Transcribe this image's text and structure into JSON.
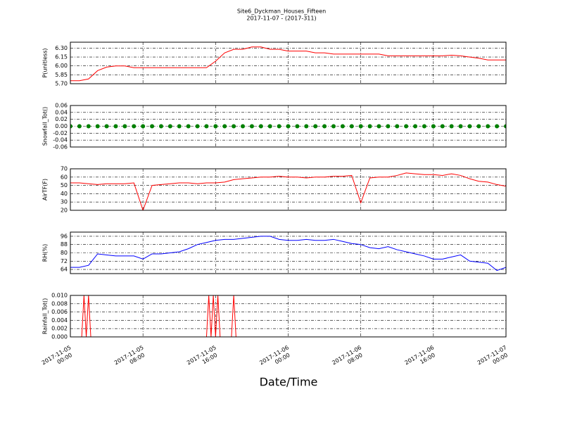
{
  "chart_data": [
    {
      "type": "line",
      "title": "Site6_Dyckman_Houses_Fifteen",
      "subtitle": "2017-11-07 - (2017-311)",
      "ylabel": "P(unitless)",
      "color": "#ff0000",
      "grid": true,
      "x": [
        "2017-11-05 00:00",
        "2017-11-05 01:00",
        "2017-11-05 02:00",
        "2017-11-05 03:00",
        "2017-11-05 04:00",
        "2017-11-05 05:00",
        "2017-11-05 06:00",
        "2017-11-05 07:00",
        "2017-11-05 08:00",
        "2017-11-05 09:00",
        "2017-11-05 10:00",
        "2017-11-05 11:00",
        "2017-11-05 12:00",
        "2017-11-05 13:00",
        "2017-11-05 14:00",
        "2017-11-05 15:00",
        "2017-11-05 16:00",
        "2017-11-05 17:00",
        "2017-11-05 18:00",
        "2017-11-05 19:00",
        "2017-11-05 20:00",
        "2017-11-05 21:00",
        "2017-11-05 22:00",
        "2017-11-05 23:00",
        "2017-11-06 00:00",
        "2017-11-06 01:00",
        "2017-11-06 02:00",
        "2017-11-06 03:00",
        "2017-11-06 04:00",
        "2017-11-06 05:00",
        "2017-11-06 06:00",
        "2017-11-06 07:00",
        "2017-11-06 08:00",
        "2017-11-06 09:00",
        "2017-11-06 10:00",
        "2017-11-06 11:00",
        "2017-11-06 12:00",
        "2017-11-06 13:00",
        "2017-11-06 14:00",
        "2017-11-06 15:00",
        "2017-11-06 16:00",
        "2017-11-06 17:00",
        "2017-11-06 18:00",
        "2017-11-06 19:00",
        "2017-11-06 20:00",
        "2017-11-06 21:00",
        "2017-11-06 22:00",
        "2017-11-06 23:00",
        "2017-11-07 00:00"
      ],
      "values": [
        5.75,
        5.75,
        5.78,
        5.92,
        5.98,
        6.0,
        6.0,
        5.97,
        5.97,
        5.97,
        5.97,
        5.97,
        5.97,
        5.97,
        5.97,
        5.97,
        6.08,
        6.22,
        6.28,
        6.28,
        6.32,
        6.32,
        6.28,
        6.28,
        6.25,
        6.25,
        6.25,
        6.22,
        6.22,
        6.2,
        6.2,
        6.2,
        6.2,
        6.2,
        6.2,
        6.17,
        6.17,
        6.17,
        6.17,
        6.17,
        6.17,
        6.17,
        6.18,
        6.17,
        6.15,
        6.13,
        6.1,
        6.1,
        6.1
      ],
      "xlim": [
        "2017-11-05 00:00",
        "2017-11-07 00:00"
      ],
      "xticks": [
        "2017-11-05 00:00",
        "2017-11-05 08:00",
        "2017-11-05 16:00",
        "2017-11-06 00:00",
        "2017-11-06 08:00",
        "2017-11-06 16:00",
        "2017-11-07 00:00"
      ],
      "ylim": [
        5.7,
        6.4
      ],
      "yticks": [
        {
          "value": 5.7,
          "label": "5.70"
        },
        {
          "value": 5.85,
          "label": "5.85"
        },
        {
          "value": 6.0,
          "label": "6.00"
        },
        {
          "value": 6.15,
          "label": "6.15"
        },
        {
          "value": 6.3,
          "label": "6.30"
        }
      ]
    },
    {
      "type": "scatter",
      "ylabel": "Snowfall_Tot()",
      "color": "#008000",
      "grid": true,
      "x": [
        "2017-11-05 00:00",
        "2017-11-05 01:00",
        "2017-11-05 02:00",
        "2017-11-05 03:00",
        "2017-11-05 04:00",
        "2017-11-05 05:00",
        "2017-11-05 06:00",
        "2017-11-05 07:00",
        "2017-11-05 08:00",
        "2017-11-05 09:00",
        "2017-11-05 10:00",
        "2017-11-05 11:00",
        "2017-11-05 12:00",
        "2017-11-05 13:00",
        "2017-11-05 14:00",
        "2017-11-05 15:00",
        "2017-11-05 16:00",
        "2017-11-05 17:00",
        "2017-11-05 18:00",
        "2017-11-05 19:00",
        "2017-11-05 20:00",
        "2017-11-05 21:00",
        "2017-11-05 22:00",
        "2017-11-05 23:00",
        "2017-11-06 00:00",
        "2017-11-06 01:00",
        "2017-11-06 02:00",
        "2017-11-06 03:00",
        "2017-11-06 04:00",
        "2017-11-06 05:00",
        "2017-11-06 06:00",
        "2017-11-06 07:00",
        "2017-11-06 08:00",
        "2017-11-06 09:00",
        "2017-11-06 10:00",
        "2017-11-06 11:00",
        "2017-11-06 12:00",
        "2017-11-06 13:00",
        "2017-11-06 14:00",
        "2017-11-06 15:00",
        "2017-11-06 16:00",
        "2017-11-06 17:00",
        "2017-11-06 18:00",
        "2017-11-06 19:00",
        "2017-11-06 20:00",
        "2017-11-06 21:00",
        "2017-11-06 22:00",
        "2017-11-06 23:00",
        "2017-11-07 00:00"
      ],
      "values": [
        0,
        0,
        0,
        0,
        0,
        0,
        0,
        0,
        0,
        0,
        0,
        0,
        0,
        0,
        0,
        0,
        0,
        0,
        0,
        0,
        0,
        0,
        0,
        0,
        0,
        0,
        0,
        0,
        0,
        0,
        0,
        0,
        0,
        0,
        0,
        0,
        0,
        0,
        0,
        0,
        0,
        0,
        0,
        0,
        0,
        0,
        0,
        0,
        0
      ],
      "xlim": [
        "2017-11-05 00:00",
        "2017-11-07 00:00"
      ],
      "xticks": [
        "2017-11-05 00:00",
        "2017-11-05 08:00",
        "2017-11-05 16:00",
        "2017-11-06 00:00",
        "2017-11-06 08:00",
        "2017-11-06 16:00",
        "2017-11-07 00:00"
      ],
      "ylim": [
        -0.06,
        0.06
      ],
      "yticks": [
        {
          "value": -0.06,
          "label": "-0.06"
        },
        {
          "value": -0.04,
          "label": "-0.04"
        },
        {
          "value": -0.02,
          "label": "-0.02"
        },
        {
          "value": 0,
          "label": "0.00"
        },
        {
          "value": 0.02,
          "label": "0.02"
        },
        {
          "value": 0.04,
          "label": "0.04"
        },
        {
          "value": 0.06,
          "label": "0.06"
        }
      ]
    },
    {
      "type": "line",
      "ylabel": "AirTF(F)",
      "color": "#ff0000",
      "grid": true,
      "x": [
        "2017-11-05 00:00",
        "2017-11-05 01:00",
        "2017-11-05 02:00",
        "2017-11-05 03:00",
        "2017-11-05 04:00",
        "2017-11-05 05:00",
        "2017-11-05 06:00",
        "2017-11-05 07:00",
        "2017-11-05 08:00",
        "2017-11-05 09:00",
        "2017-11-05 10:00",
        "2017-11-05 11:00",
        "2017-11-05 12:00",
        "2017-11-05 13:00",
        "2017-11-05 14:00",
        "2017-11-05 15:00",
        "2017-11-05 16:00",
        "2017-11-05 17:00",
        "2017-11-05 18:00",
        "2017-11-05 19:00",
        "2017-11-05 20:00",
        "2017-11-05 21:00",
        "2017-11-05 22:00",
        "2017-11-05 23:00",
        "2017-11-06 00:00",
        "2017-11-06 01:00",
        "2017-11-06 02:00",
        "2017-11-06 03:00",
        "2017-11-06 04:00",
        "2017-11-06 05:00",
        "2017-11-06 06:00",
        "2017-11-06 07:00",
        "2017-11-06 08:00",
        "2017-11-06 09:00",
        "2017-11-06 10:00",
        "2017-11-06 11:00",
        "2017-11-06 12:00",
        "2017-11-06 13:00",
        "2017-11-06 14:00",
        "2017-11-06 15:00",
        "2017-11-06 16:00",
        "2017-11-06 17:00",
        "2017-11-06 18:00",
        "2017-11-06 19:00",
        "2017-11-06 20:00",
        "2017-11-06 21:00",
        "2017-11-06 22:00",
        "2017-11-06 23:00",
        "2017-11-07 00:00"
      ],
      "values": [
        53,
        53,
        52,
        51,
        52,
        52,
        52,
        53,
        20,
        50,
        51,
        52,
        53,
        53,
        52,
        53,
        53,
        54,
        57,
        58,
        59,
        60,
        60,
        61,
        60,
        60,
        59,
        60,
        60,
        61,
        61,
        62,
        29,
        59,
        60,
        60,
        62,
        65,
        64,
        63,
        63,
        62,
        64,
        62,
        58,
        55,
        54,
        51,
        49
      ],
      "xlim": [
        "2017-11-05 00:00",
        "2017-11-07 00:00"
      ],
      "xticks": [
        "2017-11-05 00:00",
        "2017-11-05 08:00",
        "2017-11-05 16:00",
        "2017-11-06 00:00",
        "2017-11-06 08:00",
        "2017-11-06 16:00",
        "2017-11-07 00:00"
      ],
      "ylim": [
        20,
        70
      ],
      "yticks": [
        20,
        30,
        40,
        50,
        60,
        70
      ]
    },
    {
      "type": "line",
      "ylabel": "RH(%)",
      "color": "#0000ff",
      "grid": true,
      "x": [
        "2017-11-05 00:00",
        "2017-11-05 01:00",
        "2017-11-05 02:00",
        "2017-11-05 03:00",
        "2017-11-05 04:00",
        "2017-11-05 05:00",
        "2017-11-05 06:00",
        "2017-11-05 07:00",
        "2017-11-05 08:00",
        "2017-11-05 09:00",
        "2017-11-05 10:00",
        "2017-11-05 11:00",
        "2017-11-05 12:00",
        "2017-11-05 13:00",
        "2017-11-05 14:00",
        "2017-11-05 15:00",
        "2017-11-05 16:00",
        "2017-11-05 17:00",
        "2017-11-05 18:00",
        "2017-11-05 19:00",
        "2017-11-05 20:00",
        "2017-11-05 21:00",
        "2017-11-05 22:00",
        "2017-11-05 23:00",
        "2017-11-06 00:00",
        "2017-11-06 01:00",
        "2017-11-06 02:00",
        "2017-11-06 03:00",
        "2017-11-06 04:00",
        "2017-11-06 05:00",
        "2017-11-06 06:00",
        "2017-11-06 07:00",
        "2017-11-06 08:00",
        "2017-11-06 09:00",
        "2017-11-06 10:00",
        "2017-11-06 11:00",
        "2017-11-06 12:00",
        "2017-11-06 13:00",
        "2017-11-06 14:00",
        "2017-11-06 15:00",
        "2017-11-06 16:00",
        "2017-11-06 17:00",
        "2017-11-06 18:00",
        "2017-11-06 19:00",
        "2017-11-06 20:00",
        "2017-11-06 21:00",
        "2017-11-06 22:00",
        "2017-11-06 23:00",
        "2017-11-07 00:00"
      ],
      "values": [
        66,
        66,
        68,
        79,
        78,
        77,
        77,
        77,
        74,
        79,
        79,
        80,
        81,
        84,
        88,
        90,
        92,
        93,
        93,
        94,
        95,
        96,
        96,
        93,
        92,
        92,
        93,
        92,
        92,
        93,
        91,
        89,
        88,
        85,
        84,
        86,
        83,
        81,
        79,
        77,
        74,
        74,
        76,
        78,
        72,
        71,
        70,
        63,
        66
      ],
      "xlim": [
        "2017-11-05 00:00",
        "2017-11-07 00:00"
      ],
      "xticks": [
        "2017-11-05 00:00",
        "2017-11-05 08:00",
        "2017-11-05 16:00",
        "2017-11-06 00:00",
        "2017-11-06 08:00",
        "2017-11-06 16:00",
        "2017-11-07 00:00"
      ],
      "ylim": [
        60,
        100
      ],
      "yticks": [
        64,
        72,
        80,
        88,
        96
      ]
    },
    {
      "type": "line",
      "ylabel": "Rainfall_Tot()",
      "xlabel": "Date/Time",
      "color": "#ff0000",
      "grid": true,
      "x": [
        "2017-11-05 00:00",
        "2017-11-05 01:15",
        "2017-11-05 01:30",
        "2017-11-05 01:45",
        "2017-11-05 02:00",
        "2017-11-05 02:15",
        "2017-11-05 15:00",
        "2017-11-05 15:15",
        "2017-11-05 15:30",
        "2017-11-05 15:45",
        "2017-11-05 16:00",
        "2017-11-05 16:15",
        "2017-11-05 16:30",
        "2017-11-05 17:45",
        "2017-11-05 18:00",
        "2017-11-05 18:15",
        "2017-11-07 00:00"
      ],
      "values": [
        0,
        0,
        0.01,
        0,
        0.01,
        0,
        0,
        0.01,
        0,
        0.01,
        0,
        0.01,
        0,
        0,
        0.01,
        0,
        0
      ],
      "xlim": [
        "2017-11-05 00:00",
        "2017-11-07 00:00"
      ],
      "xticks": [
        {
          "value": "2017-11-05 00:00",
          "label": [
            "2017-11-05",
            "00:00"
          ]
        },
        {
          "value": "2017-11-05 08:00",
          "label": [
            "2017-11-05",
            "08:00"
          ]
        },
        {
          "value": "2017-11-05 16:00",
          "label": [
            "2017-11-05",
            "16:00"
          ]
        },
        {
          "value": "2017-11-06 00:00",
          "label": [
            "2017-11-06",
            "00:00"
          ]
        },
        {
          "value": "2017-11-06 08:00",
          "label": [
            "2017-11-06",
            "08:00"
          ]
        },
        {
          "value": "2017-11-06 16:00",
          "label": [
            "2017-11-06",
            "16:00"
          ]
        },
        {
          "value": "2017-11-07 00:00",
          "label": [
            "2017-11-07",
            "00:00"
          ]
        }
      ],
      "ylim": [
        0,
        0.01
      ],
      "yticks": [
        {
          "value": 0,
          "label": "0.000"
        },
        {
          "value": 0.002,
          "label": "0.002"
        },
        {
          "value": 0.004,
          "label": "0.004"
        },
        {
          "value": 0.006,
          "label": "0.006"
        },
        {
          "value": 0.008,
          "label": "0.008"
        },
        {
          "value": 0.01,
          "label": "0.010"
        }
      ]
    }
  ]
}
